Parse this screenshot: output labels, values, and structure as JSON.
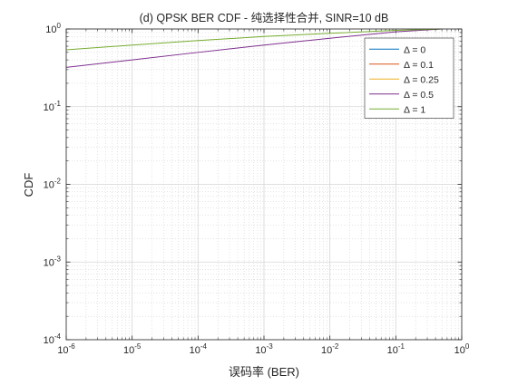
{
  "chart_data": {
    "type": "line",
    "title": "(d) QPSK BER CDF - 纯选择性合并, SINR=10 dB",
    "xlabel": "误码率 (BER)",
    "ylabel": "CDF",
    "x_scale": "log",
    "y_scale": "log",
    "xlim": [
      1e-06,
      1
    ],
    "ylim": [
      0.0001,
      1
    ],
    "x_ticks": [
      {
        "value": 1e-06,
        "base": "10",
        "exp": "-6"
      },
      {
        "value": 1e-05,
        "base": "10",
        "exp": "-5"
      },
      {
        "value": 0.0001,
        "base": "10",
        "exp": "-4"
      },
      {
        "value": 0.001,
        "base": "10",
        "exp": "-3"
      },
      {
        "value": 0.01,
        "base": "10",
        "exp": "-2"
      },
      {
        "value": 0.1,
        "base": "10",
        "exp": "-1"
      },
      {
        "value": 1,
        "base": "10",
        "exp": "0"
      }
    ],
    "y_ticks": [
      {
        "value": 0.0001,
        "base": "10",
        "exp": "-4"
      },
      {
        "value": 0.001,
        "base": "10",
        "exp": "-3"
      },
      {
        "value": 0.01,
        "base": "10",
        "exp": "-2"
      },
      {
        "value": 0.1,
        "base": "10",
        "exp": "-1"
      },
      {
        "value": 1,
        "base": "10",
        "exp": "0"
      }
    ],
    "grid": true,
    "minor_grid": true,
    "legend_position": "top-right",
    "series": [
      {
        "name": "Δ = 0",
        "color": "#0072BD",
        "x": [],
        "y": []
      },
      {
        "name": "Δ = 0.1",
        "color": "#D95319",
        "x": [],
        "y": []
      },
      {
        "name": "Δ = 0.25",
        "color": "#EDB120",
        "x": [],
        "y": []
      },
      {
        "name": "Δ = 0.5",
        "color": "#7E2F8E",
        "x": [
          1e-06,
          1e-05,
          0.0001,
          0.001,
          0.01,
          0.1,
          0.5
        ],
        "y": [
          0.32,
          0.4,
          0.5,
          0.62,
          0.76,
          0.92,
          1.0
        ]
      },
      {
        "name": "Δ = 1",
        "color": "#77AC30",
        "x": [
          1e-06,
          1e-05,
          0.0001,
          0.001,
          0.01,
          0.1,
          0.5
        ],
        "y": [
          0.54,
          0.62,
          0.71,
          0.8,
          0.88,
          0.96,
          1.0
        ]
      }
    ]
  }
}
